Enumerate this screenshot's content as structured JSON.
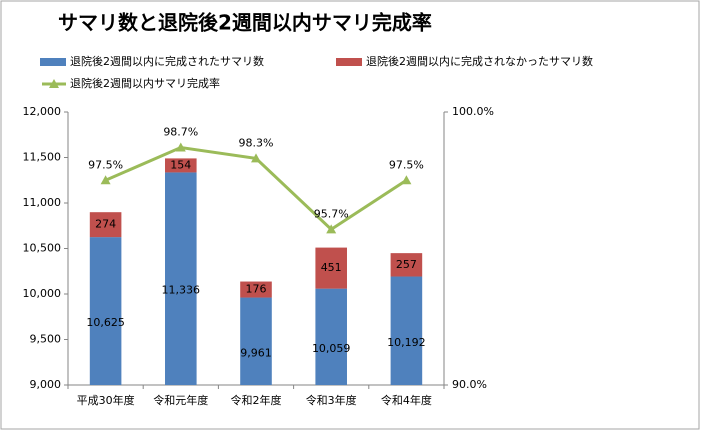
{
  "chart_data": {
    "type": "bar",
    "stacked": true,
    "title": "サマリ数と退院後2週間以内サマリ完成率",
    "categories": [
      "平成30年度",
      "令和元年度",
      "令和2年度",
      "令和3年度",
      "令和4年度"
    ],
    "series": [
      {
        "name": "退院後2週間以内に完成されたサマリ数",
        "type": "bar",
        "color": "#4f81bd",
        "values": [
          10625,
          11336,
          9961,
          10059,
          10192
        ],
        "value_labels": [
          "10,625",
          "11,336",
          "9,961",
          "10,059",
          "10,192"
        ]
      },
      {
        "name": "退院後2週間以内に完成されなかったサマリ数",
        "type": "bar",
        "color": "#c0504d",
        "values": [
          274,
          154,
          176,
          451,
          257
        ]
      },
      {
        "name": "退院後2週間以内サマリ完成率",
        "type": "line",
        "axis": "y2",
        "color": "#9bbb59",
        "values": [
          97.5,
          98.7,
          98.3,
          95.7,
          97.5
        ],
        "value_labels": [
          "97.5%",
          "98.7%",
          "98.3%",
          "95.7%",
          "97.5%"
        ]
      }
    ],
    "ylim": [
      9000,
      12000
    ],
    "yticks": [
      {
        "value": 9000,
        "label": "9,000"
      },
      {
        "value": 9500,
        "label": "9,500"
      },
      {
        "value": 10000,
        "label": "10,000"
      },
      {
        "value": 10500,
        "label": "10,500"
      },
      {
        "value": 11000,
        "label": "11,000"
      },
      {
        "value": 11500,
        "label": "11,500"
      },
      {
        "value": 12000,
        "label": "12,000"
      }
    ],
    "y2lim": [
      90,
      100
    ],
    "y2ticks": [
      {
        "value": 90,
        "label": "90.0%"
      },
      {
        "value": 100,
        "label": "100.0%"
      }
    ],
    "grid": false,
    "legend": "top"
  }
}
